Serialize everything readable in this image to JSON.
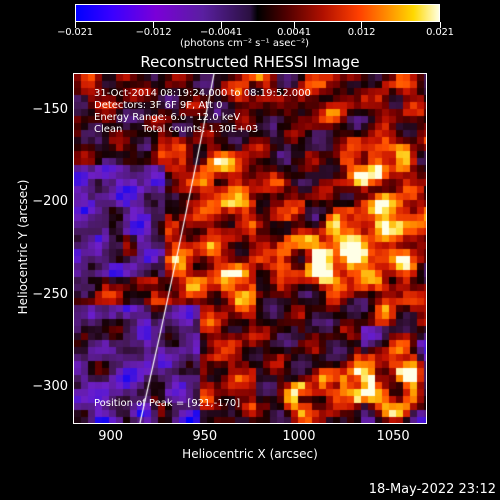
{
  "colorbar": {
    "tick_labels": [
      "−0.021",
      "−0.012",
      "−0.0041",
      "0.0041",
      "0.012",
      "0.021"
    ],
    "units": "(photons cm⁻² s⁻¹ asec⁻²)"
  },
  "title": "Reconstructed RHESSI Image",
  "annotations": {
    "time_range": "31-Oct-2014 08:19:24.000 to 08:19:52.000",
    "detectors": "Detectors: 3F 6F 9F, Att 0",
    "energy": "Energy Range: 6.0 - 12.0 keV",
    "method": "Clean",
    "counts": "Total counts: 1.30E+03",
    "peak": "Position of Peak = [921,-170]"
  },
  "chart_data": {
    "type": "heatmap",
    "title": "Reconstructed RHESSI Image",
    "xlabel": "Heliocentric X (arcsec)",
    "ylabel": "Heliocentric Y (arcsec)",
    "x_ticks": [
      "900",
      "950",
      "1000",
      "1050"
    ],
    "y_ticks": [
      "-150",
      "-200",
      "-250",
      "-300"
    ],
    "xlim": [
      880,
      1068
    ],
    "ylim": [
      -320,
      -130
    ],
    "colorbar_range": [
      -0.021,
      0.021
    ],
    "peak": [
      921,
      -170
    ],
    "limb_line": "white"
  },
  "timestamp": "18-May-2022 23:12"
}
